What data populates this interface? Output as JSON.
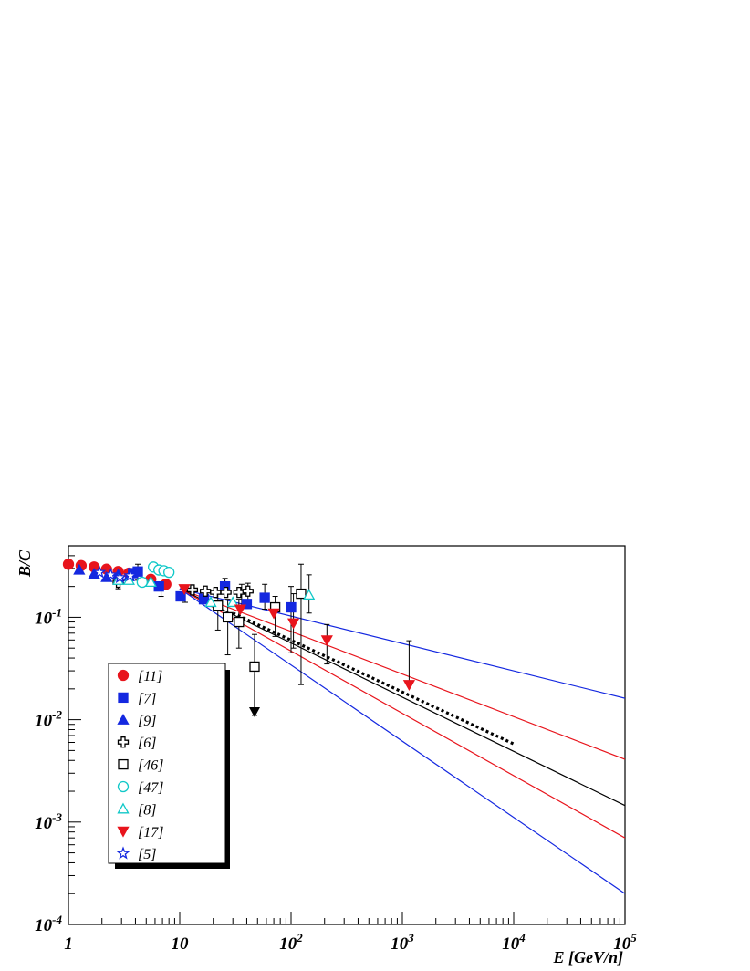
{
  "chart_data": {
    "type": "scatter",
    "title": "",
    "xlabel": "E [GeV/n]",
    "ylabel": "B/C",
    "x_scale": "log",
    "y_scale": "log",
    "xlim": [
      1,
      100000
    ],
    "ylim": [
      0.0001,
      0.5
    ],
    "grid": false,
    "legend_position": "left, inside plot",
    "x_ticks": [
      {
        "value": 1,
        "base": "1",
        "exp": ""
      },
      {
        "value": 10,
        "base": "10",
        "exp": ""
      },
      {
        "value": 100,
        "base": "10",
        "exp": "2"
      },
      {
        "value": 1000,
        "base": "10",
        "exp": "3"
      },
      {
        "value": 10000,
        "base": "10",
        "exp": "4"
      },
      {
        "value": 100000,
        "base": "10",
        "exp": "5"
      }
    ],
    "y_ticks": [
      {
        "value": 0.0001,
        "base": "10",
        "exp": "-4"
      },
      {
        "value": 0.001,
        "base": "10",
        "exp": "-3"
      },
      {
        "value": 0.01,
        "base": "10",
        "exp": "-2"
      },
      {
        "value": 0.1,
        "base": "10",
        "exp": "-1"
      }
    ],
    "series": [
      {
        "name": "[11]",
        "marker": "circle",
        "filled": true,
        "color": "#e8141c",
        "points": [
          [
            1.0,
            0.33
          ],
          [
            1.3,
            0.32
          ],
          [
            1.7,
            0.31
          ],
          [
            2.2,
            0.295
          ],
          [
            2.8,
            0.28
          ],
          [
            3.5,
            0.27
          ],
          [
            5.5,
            0.235
          ],
          [
            7.5,
            0.21
          ]
        ]
      },
      {
        "name": "[7]",
        "marker": "square",
        "filled": true,
        "color": "#1428e0",
        "points": [
          [
            3.8,
            0.27
          ],
          [
            4.2,
            0.28
          ],
          [
            6.5,
            0.2
          ],
          [
            10.2,
            0.16
          ],
          [
            16.5,
            0.15
          ],
          [
            25.5,
            0.2
          ],
          [
            40,
            0.135
          ],
          [
            58,
            0.155
          ],
          [
            100,
            0.125
          ]
        ]
      },
      {
        "name": "[9]",
        "marker": "triangle-up",
        "filled": true,
        "color": "#1428e0",
        "points": [
          [
            1.25,
            0.29
          ],
          [
            1.7,
            0.265
          ],
          [
            2.2,
            0.245
          ],
          [
            2.8,
            0.26
          ],
          [
            3.5,
            0.25
          ]
        ]
      },
      {
        "name": "[6]",
        "marker": "cross",
        "filled": false,
        "color": "#000000",
        "points": [
          [
            2.8,
            0.22
          ],
          [
            13,
            0.185
          ],
          [
            17,
            0.18
          ],
          [
            21,
            0.175
          ],
          [
            26,
            0.175
          ],
          [
            34,
            0.175
          ],
          [
            41,
            0.18
          ]
        ]
      },
      {
        "name": "[46]",
        "marker": "square",
        "filled": false,
        "color": "#000000",
        "points": [
          [
            22,
            0.13
          ],
          [
            27,
            0.1
          ],
          [
            34,
            0.09
          ],
          [
            47,
            0.033
          ],
          [
            72,
            0.125
          ],
          [
            123,
            0.17
          ]
        ]
      },
      {
        "name": "[47]",
        "marker": "circle",
        "filled": false,
        "color": "#10c8c8",
        "points": [
          [
            5.8,
            0.31
          ],
          [
            6.5,
            0.29
          ],
          [
            7.2,
            0.285
          ],
          [
            8.0,
            0.275
          ],
          [
            4.6,
            0.22
          ]
        ]
      },
      {
        "name": "[8]",
        "marker": "triangle-up",
        "filled": false,
        "color": "#10c8c8",
        "points": [
          [
            2.8,
            0.23
          ],
          [
            3.5,
            0.23
          ],
          [
            5.5,
            0.22
          ],
          [
            19,
            0.14
          ],
          [
            30,
            0.14
          ],
          [
            145,
            0.165
          ]
        ]
      },
      {
        "name": "[17]",
        "marker": "triangle-down",
        "filled": true,
        "color": "#e8141c",
        "points": [
          [
            11,
            0.19
          ],
          [
            35,
            0.12
          ],
          [
            70,
            0.11
          ],
          [
            105,
            0.088
          ],
          [
            210,
            0.06
          ],
          [
            1150,
            0.022
          ]
        ]
      },
      {
        "name": "[5]",
        "marker": "star",
        "filled": false,
        "color": "#1428e0",
        "points": [
          [
            1.9,
            0.275
          ],
          [
            2.4,
            0.26
          ],
          [
            2.9,
            0.245
          ],
          [
            3.6,
            0.255
          ]
        ]
      }
    ],
    "error_bars": [
      {
        "x": 2.8,
        "low": 0.19,
        "high": 0.25
      },
      {
        "x": 4.2,
        "low": 0.23,
        "high": 0.33
      },
      {
        "x": 6.8,
        "low": 0.16,
        "high": 0.22
      },
      {
        "x": 11.2,
        "low": 0.14,
        "high": 0.2
      },
      {
        "x": 25.5,
        "low": 0.17,
        "high": 0.24
      },
      {
        "x": 22,
        "low": 0.075,
        "high": 0.18
      },
      {
        "x": 27,
        "low": 0.043,
        "high": 0.15
      },
      {
        "x": 34,
        "low": 0.05,
        "high": 0.15
      },
      {
        "x": 36,
        "low": 0.13,
        "high": 0.21
      },
      {
        "x": 41,
        "low": 0.14,
        "high": 0.215
      },
      {
        "x": 47,
        "low": 0.011,
        "high": 0.068
      },
      {
        "x": 58,
        "low": 0.12,
        "high": 0.21
      },
      {
        "x": 72,
        "low": 0.065,
        "high": 0.16
      },
      {
        "x": 100,
        "low": 0.045,
        "high": 0.2
      },
      {
        "x": 105,
        "low": 0.05,
        "high": 0.17
      },
      {
        "x": 123,
        "low": 0.022,
        "high": 0.33
      },
      {
        "x": 145,
        "low": 0.11,
        "high": 0.26
      },
      {
        "x": 210,
        "low": 0.035,
        "high": 0.085
      },
      {
        "x": 1150,
        "low": 0.022,
        "high": 0.059
      }
    ],
    "upper_limits": [
      {
        "x": 47,
        "from": 0.028,
        "to": 0.011,
        "color": "#000000"
      }
    ],
    "model_lines": [
      {
        "color": "#1428e0",
        "from": [
          10,
          0.19
        ],
        "to": [
          100000,
          0.0162
        ]
      },
      {
        "color": "#e8141c",
        "from": [
          10,
          0.19
        ],
        "to": [
          100000,
          0.0041
        ]
      },
      {
        "color": "#000000",
        "from": [
          10,
          0.19
        ],
        "to": [
          100000,
          0.00145
        ]
      },
      {
        "color": "#e8141c",
        "from": [
          10,
          0.19
        ],
        "to": [
          100000,
          0.0007
        ]
      },
      {
        "color": "#1428e0",
        "from": [
          10,
          0.19
        ],
        "to": [
          100000,
          0.0002
        ]
      }
    ],
    "dotted_fit": {
      "color": "#000000",
      "from": [
        30,
        0.11
      ],
      "to": [
        10000,
        0.0058
      ]
    }
  }
}
